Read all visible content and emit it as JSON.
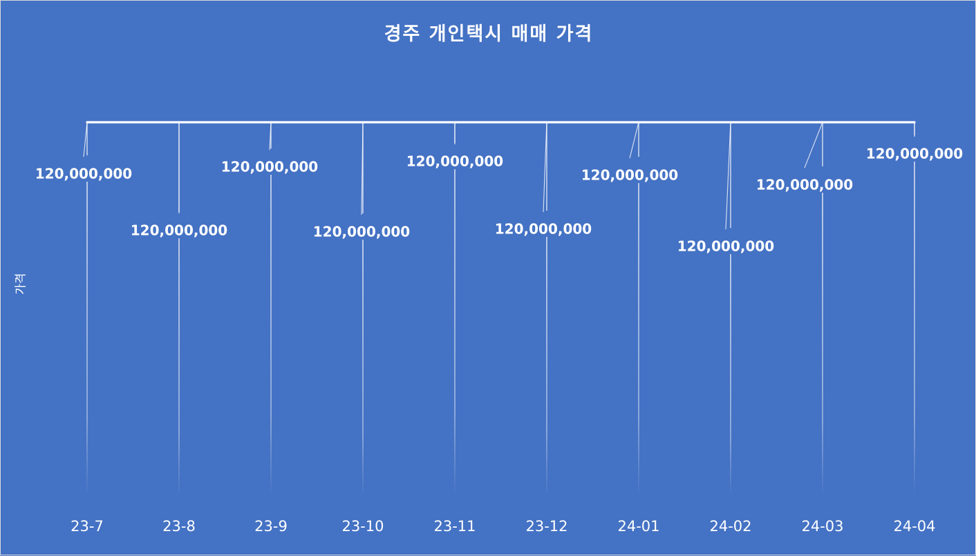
{
  "chart_data": {
    "type": "line",
    "title": "경주 개인택시 매매 가격",
    "xlabel": "",
    "ylabel": "가격",
    "categories": [
      "23-7",
      "23-8",
      "23-9",
      "23-10",
      "23-11",
      "23-12",
      "24-01",
      "24-02",
      "24-03",
      "24-04"
    ],
    "series": [
      {
        "values": [
          120000000,
          120000000,
          120000000,
          120000000,
          120000000,
          120000000,
          120000000,
          120000000,
          120000000,
          120000000
        ],
        "labels": [
          "120,000,000",
          "120,000,000",
          "120,000,000",
          "120,000,000",
          "120,000,000",
          "120,000,000",
          "120,000,000",
          "120,000,000",
          "120,000,000",
          "120,000,000"
        ]
      }
    ],
    "grid": false,
    "drop_lines": true,
    "colors": {
      "background": "#4472c4",
      "line": "#ffffff",
      "text": "#ffffff"
    }
  }
}
